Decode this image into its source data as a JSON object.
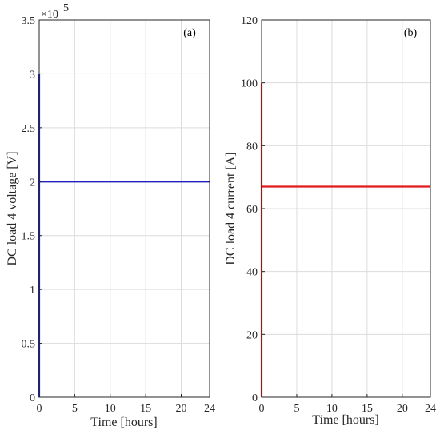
{
  "chart_data": [
    {
      "type": "line",
      "panel_label": "(a)",
      "xlabel": "Time [hours]",
      "ylabel": "DC load 4 voltage [V]",
      "y_exponent_label": "×10",
      "y_exponent_power": "5",
      "xlim": [
        0,
        24
      ],
      "ylim": [
        0,
        3.5
      ],
      "xticks": [
        0,
        5,
        10,
        15,
        20,
        24
      ],
      "yticks": [
        0,
        0.5,
        1,
        1.5,
        2,
        2.5,
        3,
        3.5
      ],
      "grid": true,
      "series": [
        {
          "color": "#1f1fbf",
          "x": [
            0,
            0,
            0,
            24
          ],
          "y": [
            0,
            3.0,
            2.0,
            2.0
          ]
        }
      ]
    },
    {
      "type": "line",
      "panel_label": "(b)",
      "xlabel": "Time [hours]",
      "ylabel": "DC load 4 current [A]",
      "xlim": [
        0,
        24
      ],
      "ylim": [
        0,
        120
      ],
      "xticks": [
        0,
        5,
        10,
        15,
        20,
        24
      ],
      "yticks": [
        0,
        20,
        40,
        60,
        80,
        100,
        120
      ],
      "grid": true,
      "series": [
        {
          "color": "#e01b1b",
          "x": [
            0,
            0,
            0,
            24
          ],
          "y": [
            0,
            100,
            67,
            67
          ]
        }
      ]
    }
  ]
}
